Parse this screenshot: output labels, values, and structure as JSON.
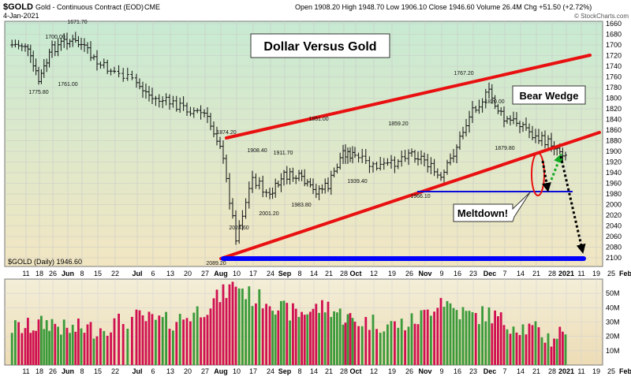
{
  "header": {
    "symbol": "$GOLD",
    "description": "Gold - Continuous Contract (EOD)",
    "exchange": "CME",
    "date": "4-Jan-2021",
    "quote": "Open 1908.20  High 1948.70  Low 1906.10  Close 1946.60  Volume 26.4M  Chg +51.50 (+2.72%)",
    "watermark": "© StockCharts.com"
  },
  "title_box": "Dollar Versus Gold",
  "callouts": {
    "bear_wedge": "Bear Wedge",
    "meltdown": "Meltdown!"
  },
  "legend": "$GOLD (Daily) 1946.60",
  "colors": {
    "price_panel_top": "#c7ead2",
    "price_panel_bottom": "#f2e6c2",
    "wedge_lines": "#e81010",
    "support_line": "#0b0bd8",
    "target_line": "#0000ff",
    "bar_up": "#3a9a3a",
    "bar_down": "#d01050",
    "arrow_down": "#000000",
    "arrow_up": "#11aa22"
  },
  "chart_data": [
    {
      "type": "line",
      "subtype": "ohlc-bars",
      "title": "$GOLD (Daily)",
      "y_axis": "inverted",
      "ylim": [
        1660,
        2100
      ],
      "yticks": [
        1660,
        1680,
        1700,
        1720,
        1740,
        1760,
        1780,
        1800,
        1820,
        1840,
        1860,
        1880,
        1900,
        1920,
        1940,
        1960,
        1980,
        2000,
        2020,
        2040,
        2060,
        2080,
        2100
      ],
      "xticks": [
        "11",
        "18",
        "26",
        "Jun",
        "8",
        "15",
        "22",
        "Jul",
        "6",
        "13",
        "20",
        "27",
        "Aug",
        "10",
        "17",
        "24",
        "Sep",
        "8",
        "14",
        "21",
        "28",
        "Oct",
        "12",
        "19",
        "26",
        "Nov",
        "9",
        "16",
        "23",
        "Dec",
        "7",
        "14",
        "21",
        "28",
        "2021",
        "11",
        "19",
        "25",
        "Feb"
      ],
      "series": [
        {
          "x": [
            "11",
            "18",
            "26",
            "Jun",
            "8",
            "15",
            "22",
            "Jul",
            "6",
            "13",
            "20",
            "27",
            "Aug",
            "10",
            "17",
            "24",
            "Sep",
            "8",
            "14",
            "21",
            "28",
            "Oct",
            "12",
            "19",
            "26",
            "Nov",
            "9",
            "16",
            "23",
            "Dec",
            "7",
            "14",
            "21",
            "28",
            "2021"
          ],
          "values": [
            1700,
            1768,
            1708,
            1690,
            1700,
            1735,
            1750,
            1772,
            1800,
            1808,
            1820,
            1830,
            1885,
            2060,
            1950,
            1985,
            1945,
            1950,
            1975,
            1965,
            1900,
            1910,
            1930,
            1925,
            1900,
            1915,
            1955,
            1890,
            1820,
            1790,
            1842,
            1845,
            1875,
            1885,
            1905
          ]
        }
      ],
      "annotations": [
        "1671.70",
        "1700.00",
        "1775.80",
        "1761.00",
        "1874.20",
        "1908.40",
        "1911.70",
        "1851.00",
        "1859.20",
        "1767.20",
        "1820.00",
        "1879.80",
        "1939.40",
        "2001.20",
        "1983.80",
        "2024.60",
        "2089.20",
        "1966.10"
      ]
    },
    {
      "type": "bar",
      "title": "Volume",
      "ylim": [
        0,
        60
      ],
      "yticks": [
        "10M",
        "20M",
        "30M",
        "40M",
        "50M"
      ],
      "x": [
        "11",
        "18",
        "26",
        "Jun",
        "8",
        "15",
        "22",
        "Jul",
        "6",
        "13",
        "20",
        "27",
        "Aug",
        "10",
        "17",
        "24",
        "Sep",
        "8",
        "14",
        "21",
        "28",
        "Oct",
        "12",
        "19",
        "26",
        "Nov",
        "9",
        "16",
        "23",
        "Dec",
        "7",
        "14",
        "21",
        "28",
        "2021"
      ],
      "values": [
        26,
        28,
        30,
        24,
        26,
        25,
        29,
        33,
        31,
        30,
        34,
        40,
        48,
        57,
        47,
        45,
        38,
        36,
        39,
        41,
        34,
        31,
        30,
        28,
        29,
        35,
        47,
        38,
        34,
        36,
        30,
        27,
        24,
        18,
        26
      ]
    }
  ]
}
